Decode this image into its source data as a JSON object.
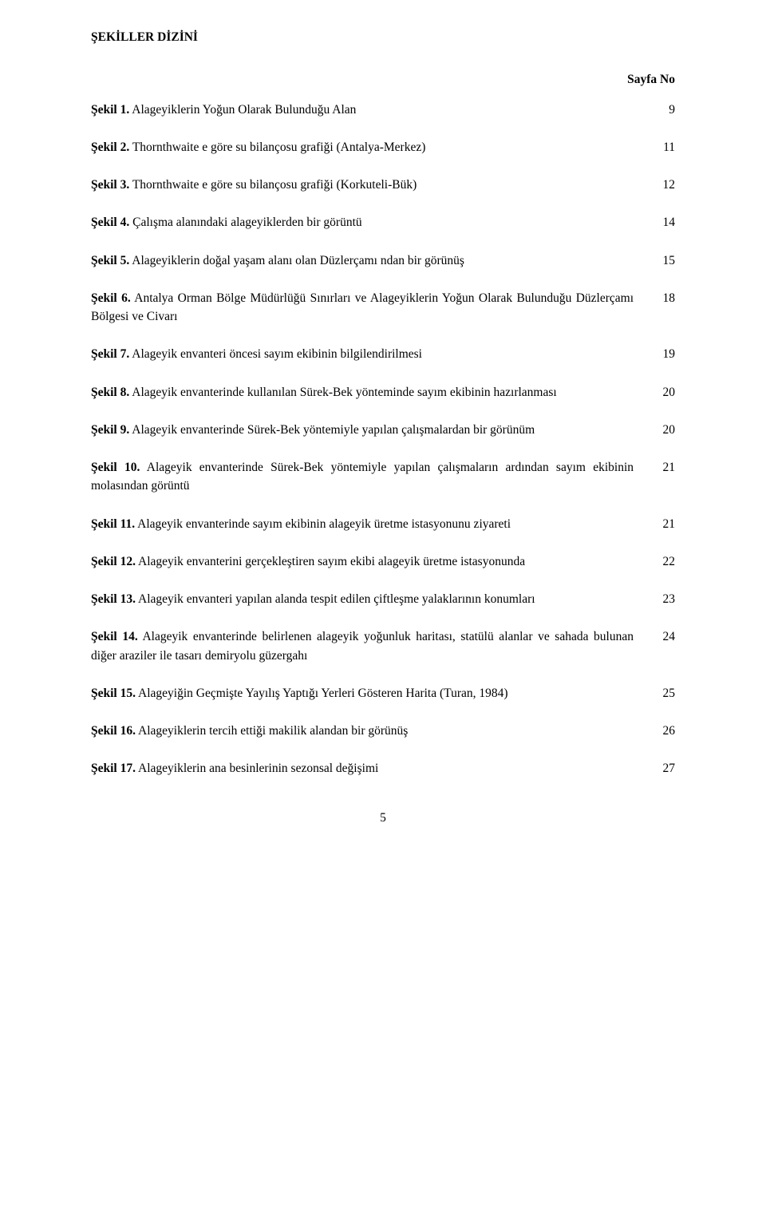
{
  "title": "ŞEKİLLER DİZİNİ",
  "columnHeader": "Sayfa No",
  "pageNumber": "5",
  "entries": [
    {
      "lead": "Şekil 1.",
      "text": " Alageyiklerin Yoğun Olarak Bulunduğu Alan",
      "page": "9"
    },
    {
      "lead": "Şekil 2.",
      "text": " Thornthwaite e göre su bilançosu grafiği (Antalya-Merkez)",
      "page": "11"
    },
    {
      "lead": "Şekil 3.",
      "text": " Thornthwaite e göre su bilançosu grafiği (Korkuteli-Bük)",
      "page": "12"
    },
    {
      "lead": "Şekil 4.",
      "text": " Çalışma alanındaki alageyiklerden bir görüntü",
      "page": "14"
    },
    {
      "lead": "Şekil 5.",
      "text": " Alageyiklerin doğal yaşam alanı olan Düzlerçamı ndan bir görünüş",
      "page": "15"
    },
    {
      "lead": "Şekil 6.",
      "text": " Antalya Orman Bölge Müdürlüğü Sınırları ve Alageyiklerin Yoğun Olarak Bulunduğu Düzlerçamı Bölgesi ve Civarı",
      "page": "18"
    },
    {
      "lead": "Şekil 7.",
      "text": " Alageyik envanteri öncesi sayım ekibinin bilgilendirilmesi",
      "page": "19"
    },
    {
      "lead": "Şekil 8.",
      "text": " Alageyik envanterinde kullanılan Sürek-Bek yönteminde sayım ekibinin hazırlanması",
      "page": "20"
    },
    {
      "lead": "Şekil 9.",
      "text": " Alageyik envanterinde Sürek-Bek yöntemiyle yapılan çalışmalardan bir görünüm",
      "page": "20"
    },
    {
      "lead": "Şekil 10.",
      "text": " Alageyik envanterinde Sürek-Bek yöntemiyle yapılan çalışmaların ardından sayım ekibinin molasından görüntü",
      "page": "21"
    },
    {
      "lead": "Şekil 11.",
      "text": " Alageyik envanterinde sayım ekibinin alageyik üretme istasyonunu ziyareti",
      "page": "21"
    },
    {
      "lead": "Şekil 12.",
      "text": " Alageyik envanterini gerçekleştiren sayım ekibi alageyik üretme istasyonunda",
      "page": "22"
    },
    {
      "lead": "Şekil 13.",
      "text": " Alageyik envanteri yapılan alanda tespit edilen çiftleşme yalaklarının konumları",
      "page": "23"
    },
    {
      "lead": "Şekil 14.",
      "text": " Alageyik envanterinde belirlenen alageyik yoğunluk haritası, statülü alanlar ve sahada bulunan diğer araziler ile tasarı demiryolu güzergahı",
      "page": "24"
    },
    {
      "lead": "Şekil 15.",
      "text": " Alageyiğin Geçmişte Yayılış Yaptığı Yerleri Gösteren Harita (Turan, 1984)",
      "page": "25"
    },
    {
      "lead": "Şekil 16.",
      "text": " Alageyiklerin tercih ettiği makilik alandan bir görünüş",
      "page": "26"
    },
    {
      "lead": "Şekil 17.",
      "text": " Alageyiklerin ana besinlerinin sezonsal değişimi",
      "page": "27"
    }
  ]
}
